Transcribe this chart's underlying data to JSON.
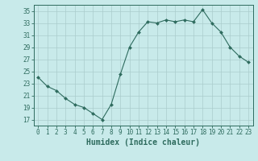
{
  "x": [
    0,
    1,
    2,
    3,
    4,
    5,
    6,
    7,
    8,
    9,
    10,
    11,
    12,
    13,
    14,
    15,
    16,
    17,
    18,
    19,
    20,
    21,
    22,
    23
  ],
  "y": [
    24.0,
    22.5,
    21.8,
    20.5,
    19.5,
    19.0,
    18.0,
    17.0,
    19.5,
    24.5,
    29.0,
    31.5,
    33.2,
    33.0,
    33.5,
    33.2,
    33.5,
    33.2,
    35.2,
    33.0,
    31.5,
    29.0,
    27.5,
    26.5
  ],
  "line_color": "#2e6b5e",
  "marker": "D",
  "marker_size": 2.0,
  "bg_color": "#c8eaea",
  "grid_color": "#aacccc",
  "xlabel": "Humidex (Indice chaleur)",
  "xlim": [
    -0.5,
    23.5
  ],
  "ylim": [
    16,
    36
  ],
  "yticks": [
    17,
    19,
    21,
    23,
    25,
    27,
    29,
    31,
    33,
    35
  ],
  "xticks": [
    0,
    1,
    2,
    3,
    4,
    5,
    6,
    7,
    8,
    9,
    10,
    11,
    12,
    13,
    14,
    15,
    16,
    17,
    18,
    19,
    20,
    21,
    22,
    23
  ],
  "tick_label_fontsize": 5.5,
  "xlabel_fontsize": 7.0,
  "linewidth": 0.8
}
